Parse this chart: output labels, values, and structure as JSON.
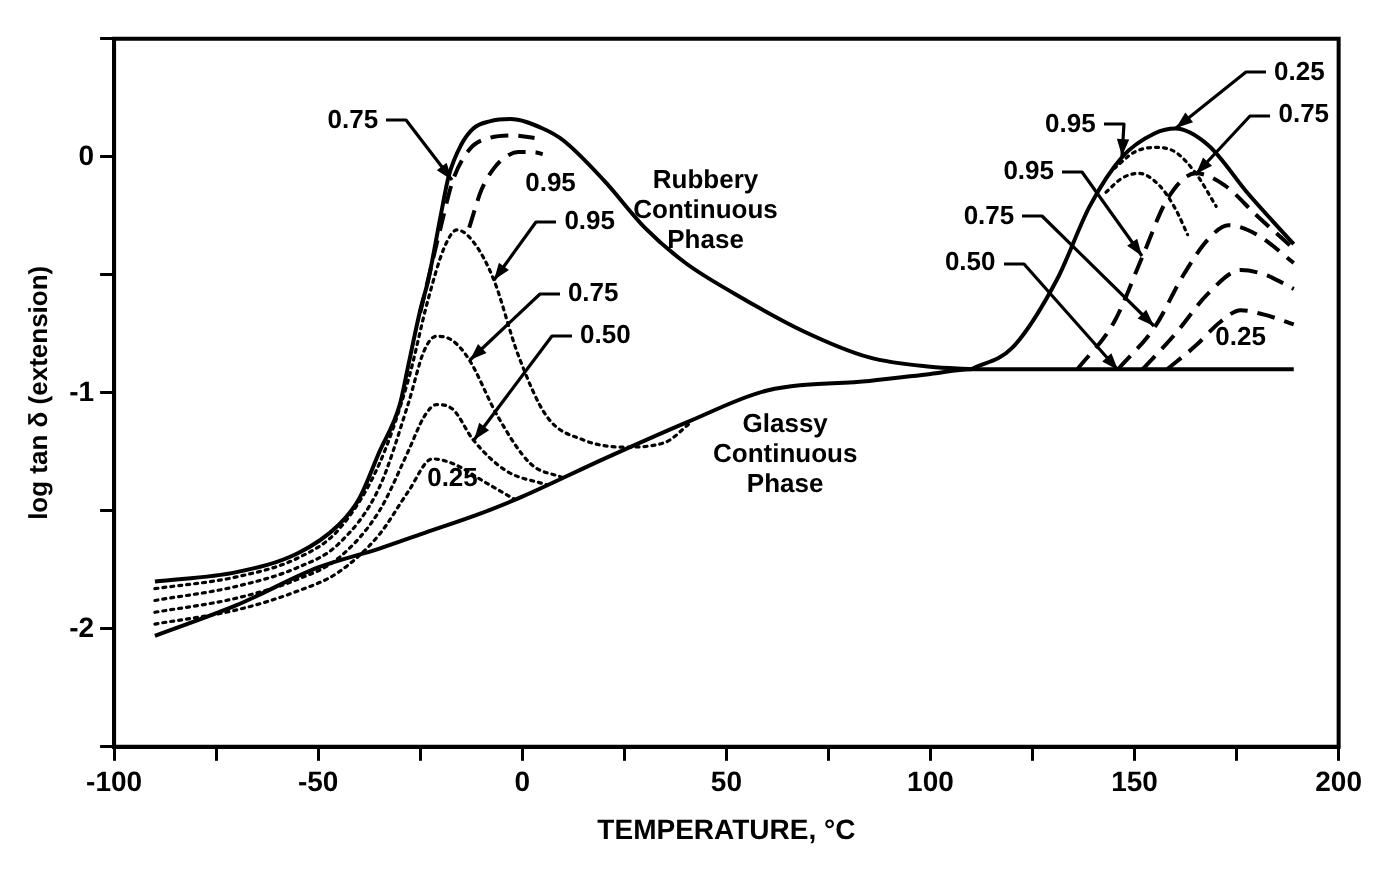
{
  "chart_data": {
    "type": "line",
    "xlabel": "TEMPERATURE, °C",
    "ylabel": "log tan δ (extension)",
    "xlim": [
      -100,
      200
    ],
    "xticks": [
      -100,
      {
        "value": -75,
        "label": null
      },
      -50,
      {
        "value": -25,
        "label": null
      },
      0,
      {
        "value": 25,
        "label": null
      },
      50,
      {
        "value": 75,
        "label": null
      },
      100,
      {
        "value": 125,
        "label": null
      },
      150,
      {
        "value": 175,
        "label": null
      },
      200
    ],
    "ylim": [
      -2.5,
      0.5
    ],
    "yticks": [
      {
        "value": -2.5,
        "label": null
      },
      -2,
      {
        "value": -1.5,
        "label": null
      },
      -1,
      {
        "value": -0.5,
        "label": null
      },
      0,
      {
        "value": 0.5,
        "label": null
      }
    ],
    "grid": false,
    "legend": false,
    "marker": "none",
    "series": [
      {
        "color": "#000000",
        "line_style": "solid",
        "x": [
          -90,
          -70,
          -55,
          -45,
          -40,
          -35,
          -30,
          -28,
          -25,
          -23,
          -20,
          -18,
          -15,
          -12,
          -8,
          -3,
          5,
          10,
          20,
          30,
          40,
          52,
          69,
          85,
          100,
          110
        ],
        "values": [
          -1.8,
          -1.76,
          -1.68,
          -1.56,
          -1.45,
          -1.25,
          -1.05,
          -0.89,
          -0.65,
          -0.52,
          -0.25,
          -0.08,
          0.05,
          0.12,
          0.15,
          0.16,
          0.12,
          0.07,
          -0.1,
          -0.3,
          -0.45,
          -0.58,
          -0.74,
          -0.85,
          -0.89,
          -0.9
        ]
      },
      {
        "color": "#000000",
        "line_style": "dashed",
        "x": [
          -25,
          -20,
          -17,
          -13,
          -8,
          -2,
          3
        ],
        "values": [
          -0.66,
          -0.3,
          -0.1,
          0.03,
          0.08,
          0.09,
          0.08
        ]
      },
      {
        "color": "#000000",
        "line_style": "dashed",
        "x": [
          -13,
          -10,
          -7,
          -4,
          -1,
          3,
          5
        ],
        "values": [
          -0.3,
          -0.14,
          -0.05,
          0.0,
          0.02,
          0.02,
          0.01
        ]
      },
      {
        "color": "#000000",
        "line_style": "dotted",
        "x": [
          -90,
          -70,
          -55,
          -45,
          -35,
          -28,
          -23,
          -19,
          -16,
          -12,
          -7,
          -1,
          6,
          15,
          25,
          35,
          41
        ],
        "values": [
          -1.83,
          -1.78,
          -1.7,
          -1.58,
          -1.3,
          -0.95,
          -0.6,
          -0.38,
          -0.31,
          -0.36,
          -0.52,
          -0.84,
          -1.1,
          -1.2,
          -1.23,
          -1.21,
          -1.13
        ]
      },
      {
        "color": "#000000",
        "line_style": "dotted",
        "x": [
          -90,
          -70,
          -55,
          -45,
          -35,
          -28,
          -24,
          -21,
          -17,
          -13,
          -6,
          2,
          10
        ],
        "values": [
          -1.88,
          -1.82,
          -1.74,
          -1.64,
          -1.4,
          -1.05,
          -0.82,
          -0.76,
          -0.78,
          -0.86,
          -1.1,
          -1.3,
          -1.36
        ]
      },
      {
        "color": "#000000",
        "line_style": "dotted",
        "x": [
          -90,
          -70,
          -55,
          -45,
          -35,
          -28,
          -24,
          -21,
          -17,
          -12,
          -4,
          6
        ],
        "values": [
          -1.93,
          -1.87,
          -1.79,
          -1.7,
          -1.5,
          -1.25,
          -1.1,
          -1.05,
          -1.07,
          -1.2,
          -1.33,
          -1.39
        ]
      },
      {
        "color": "#000000",
        "line_style": "dotted",
        "x": [
          -90,
          -70,
          -55,
          -45,
          -35,
          -28,
          -22,
          -17,
          -9,
          -2
        ],
        "values": [
          -1.98,
          -1.92,
          -1.84,
          -1.76,
          -1.6,
          -1.42,
          -1.28,
          -1.3,
          -1.38,
          -1.45
        ]
      },
      {
        "color": "#000000",
        "line_style": "solid",
        "x": [
          -90,
          -70,
          -50,
          -35,
          -25,
          -10,
          0,
          20,
          41,
          60,
          85,
          100,
          110,
          150,
          189
        ],
        "values": [
          -2.03,
          -1.9,
          -1.74,
          -1.66,
          -1.6,
          -1.51,
          -1.44,
          -1.28,
          -1.12,
          -0.99,
          -0.95,
          -0.92,
          -0.9,
          -0.9,
          -0.9
        ]
      },
      {
        "color": "#000000",
        "line_style": "solid",
        "x": [
          110,
          120,
          131,
          139,
          147,
          155,
          160,
          168,
          178,
          189
        ],
        "values": [
          -0.9,
          -0.81,
          -0.52,
          -0.21,
          0.0,
          0.1,
          0.12,
          0.05,
          -0.16,
          -0.37
        ]
      },
      {
        "color": "#000000",
        "line_style": "dotted",
        "x": [
          145,
          150,
          155,
          160,
          165,
          170
        ],
        "values": [
          -0.05,
          0.02,
          0.04,
          0.02,
          -0.07,
          -0.21
        ]
      },
      {
        "color": "#000000",
        "line_style": "dotted",
        "x": [
          143,
          147,
          151,
          156,
          160,
          163
        ],
        "values": [
          -0.15,
          -0.09,
          -0.07,
          -0.12,
          -0.22,
          -0.33
        ]
      },
      {
        "color": "#000000",
        "line_style": "dashed",
        "x": [
          136,
          145,
          152,
          158,
          165,
          172,
          180,
          189
        ],
        "values": [
          -0.9,
          -0.7,
          -0.42,
          -0.18,
          -0.07,
          -0.12,
          -0.25,
          -0.39
        ]
      },
      {
        "color": "#000000",
        "line_style": "dashed",
        "x": [
          146,
          155,
          162,
          168,
          173,
          180,
          189
        ],
        "values": [
          -0.9,
          -0.72,
          -0.5,
          -0.35,
          -0.29,
          -0.33,
          -0.45
        ]
      },
      {
        "color": "#000000",
        "line_style": "dashed",
        "x": [
          152,
          160,
          168,
          176,
          182,
          189
        ],
        "values": [
          -0.9,
          -0.75,
          -0.58,
          -0.48,
          -0.5,
          -0.56
        ]
      },
      {
        "color": "#000000",
        "line_style": "dashed",
        "x": [
          158,
          165,
          171,
          176,
          182,
          189
        ],
        "values": [
          -0.9,
          -0.8,
          -0.7,
          -0.65,
          -0.67,
          -0.71
        ]
      }
    ],
    "annotations": [
      {
        "text": "0.75",
        "x": -17,
        "y": -0.1
      },
      {
        "text": "0.95",
        "x": 3,
        "y": 0.02
      },
      {
        "text": "0.95",
        "x": -7,
        "y": -0.52
      },
      {
        "text": "0.75",
        "x": -13,
        "y": -0.86
      },
      {
        "text": "0.50",
        "x": -12,
        "y": -1.2
      },
      {
        "text": "0.25",
        "x": -22,
        "y": -1.28
      },
      {
        "text": "Rubbery\nContinuous\nPhase",
        "x": 40,
        "y": -0.45
      },
      {
        "text": "Glassy\nContinuous\nPhase",
        "x": 60,
        "y": -0.99
      },
      {
        "text": "0.95",
        "x": 147,
        "y": 0.0
      },
      {
        "text": "0.95",
        "x": 152,
        "y": -0.42
      },
      {
        "text": "0.75",
        "x": 155,
        "y": -0.72
      },
      {
        "text": "0.50",
        "x": 146,
        "y": -0.9
      },
      {
        "text": "0.25",
        "x": 160,
        "y": 0.12
      },
      {
        "text": "0.75",
        "x": 165,
        "y": -0.07
      },
      {
        "text": "0.25",
        "x": 176,
        "y": -0.65
      }
    ]
  }
}
